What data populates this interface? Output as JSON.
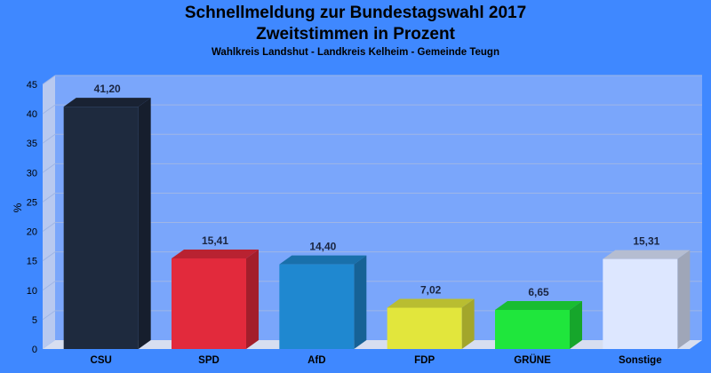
{
  "chart_data": {
    "type": "bar",
    "title": "Schnellmeldung zur Bundestagswahl 2017",
    "subtitle1": "Zweitstimmen in Prozent",
    "subtitle2": "Wahlkreis Landshut - Landkreis Kelheim - Gemeinde Teugn",
    "ylabel": "%",
    "xlabel": "",
    "ylim": [
      0,
      45
    ],
    "yticks": [
      0,
      5,
      10,
      15,
      20,
      25,
      30,
      35,
      40,
      45
    ],
    "grid": true,
    "categories": [
      "CSU",
      "SPD",
      "AfD",
      "FDP",
      "GRÜNE",
      "Sonstige"
    ],
    "values": [
      41.2,
      15.41,
      14.4,
      7.02,
      6.65,
      15.31
    ],
    "value_labels": [
      "41,20",
      "15,41",
      "14,40",
      "7,02",
      "6,65",
      "15,31"
    ],
    "colors": [
      "#1e2a3e",
      "#e22a3c",
      "#1f88d0",
      "#e2e63c",
      "#1fe63c",
      "#dde7ff"
    ]
  },
  "style": {
    "background": "#3f88ff",
    "plot_background": "#7aa6fb",
    "floor_color": "#d7def0"
  }
}
